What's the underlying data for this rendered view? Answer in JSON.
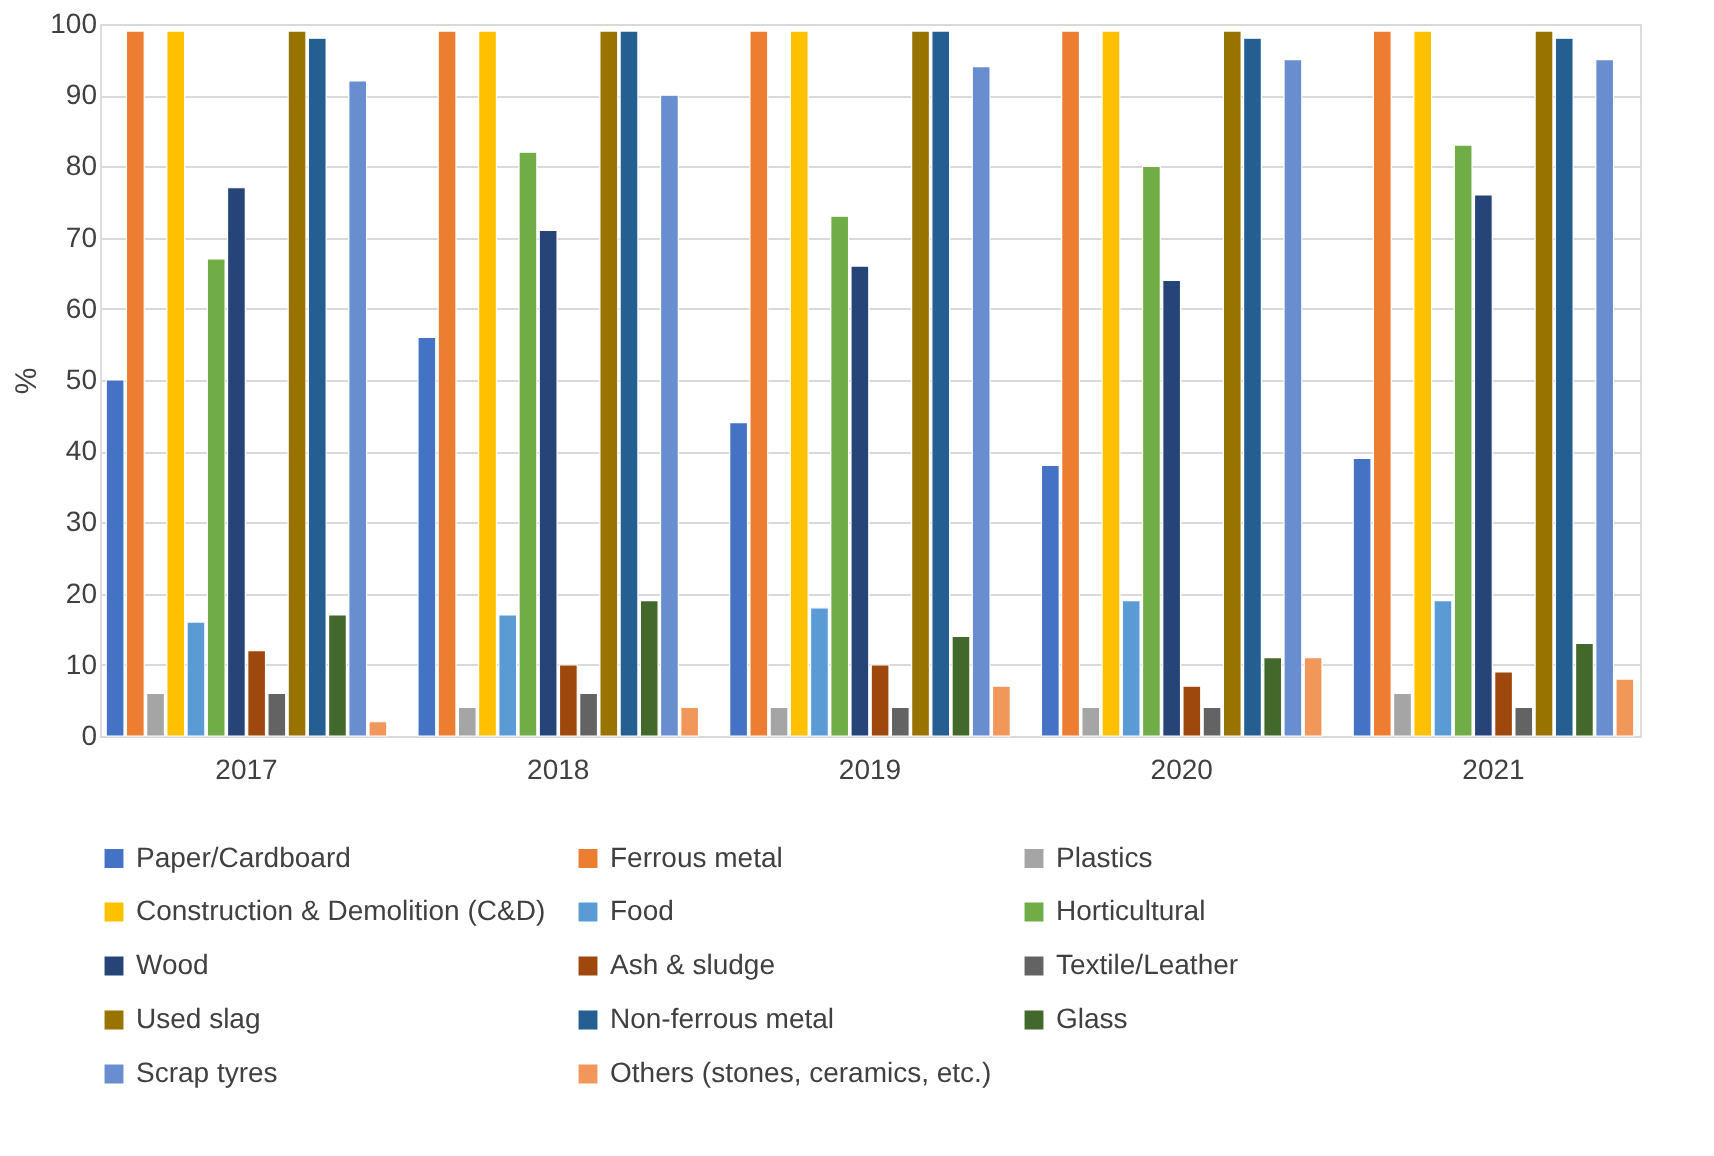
{
  "chart_data": {
    "type": "bar",
    "ylabel": "%",
    "categories": [
      "2017",
      "2018",
      "2019",
      "2020",
      "2021"
    ],
    "ylim": [
      0,
      100
    ],
    "yticks": [
      0,
      10,
      20,
      30,
      40,
      50,
      60,
      70,
      80,
      90,
      100
    ],
    "grid": "y",
    "legend": "bottom",
    "series": [
      {
        "name": "Paper/Cardboard",
        "color": "#4472c4",
        "values": [
          50,
          56,
          44,
          38,
          39
        ]
      },
      {
        "name": "Ferrous metal",
        "color": "#ed7d31",
        "values": [
          99,
          99,
          99,
          99,
          99
        ]
      },
      {
        "name": "Plastics",
        "color": "#a5a5a5",
        "values": [
          6,
          4,
          4,
          4,
          6
        ]
      },
      {
        "name": "Construction & Demolition (C&D)",
        "color": "#ffc000",
        "values": [
          99,
          99,
          99,
          99,
          99
        ]
      },
      {
        "name": "Food",
        "color": "#5b9bd5",
        "values": [
          16,
          17,
          18,
          19,
          19
        ]
      },
      {
        "name": "Horticultural",
        "color": "#70ad47",
        "values": [
          67,
          82,
          73,
          80,
          83
        ]
      },
      {
        "name": "Wood",
        "color": "#264478",
        "values": [
          77,
          71,
          66,
          64,
          76
        ]
      },
      {
        "name": "Ash & sludge",
        "color": "#9e480e",
        "values": [
          12,
          10,
          10,
          7,
          9
        ]
      },
      {
        "name": "Textile/Leather",
        "color": "#636363",
        "values": [
          6,
          6,
          4,
          4,
          4
        ]
      },
      {
        "name": "Used slag",
        "color": "#997300",
        "values": [
          99,
          99,
          99,
          99,
          99
        ]
      },
      {
        "name": "Non-ferrous metal",
        "color": "#255e91",
        "values": [
          98,
          99,
          99,
          98,
          98
        ]
      },
      {
        "name": "Glass",
        "color": "#43682b",
        "values": [
          17,
          19,
          14,
          11,
          13
        ]
      },
      {
        "name": "Scrap tyres",
        "color": "#698ed0",
        "values": [
          92,
          90,
          94,
          95,
          95
        ]
      },
      {
        "name": "Others (stones, ceramics, etc.)",
        "color": "#f1975a",
        "values": [
          2,
          4,
          7,
          11,
          8
        ]
      }
    ]
  }
}
